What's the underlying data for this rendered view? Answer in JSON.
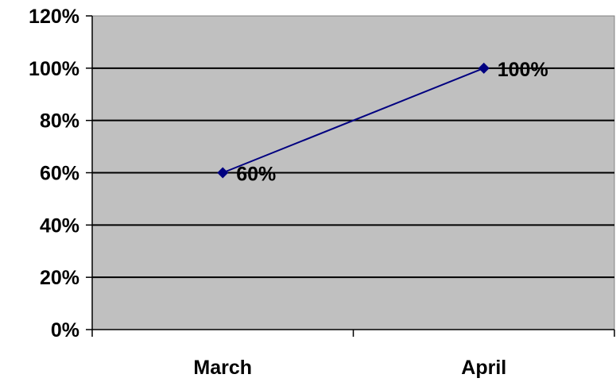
{
  "chart_data": {
    "type": "line",
    "categories": [
      "March",
      "April"
    ],
    "series": [
      {
        "values": [
          0.6,
          1.0
        ],
        "data_labels": [
          "60%",
          "100%"
        ]
      }
    ],
    "ylim": [
      0,
      1.2
    ],
    "yticks": [
      0,
      0.2,
      0.4,
      0.6,
      0.8,
      1.0,
      1.2
    ],
    "ytick_labels": [
      "0%",
      "20%",
      "40%",
      "60%",
      "80%",
      "100%",
      "120%"
    ],
    "grid": true,
    "legend": "none",
    "colors": {
      "plot_background": "#c0c0c0",
      "line": "#000080",
      "gridline": "#000000"
    }
  }
}
